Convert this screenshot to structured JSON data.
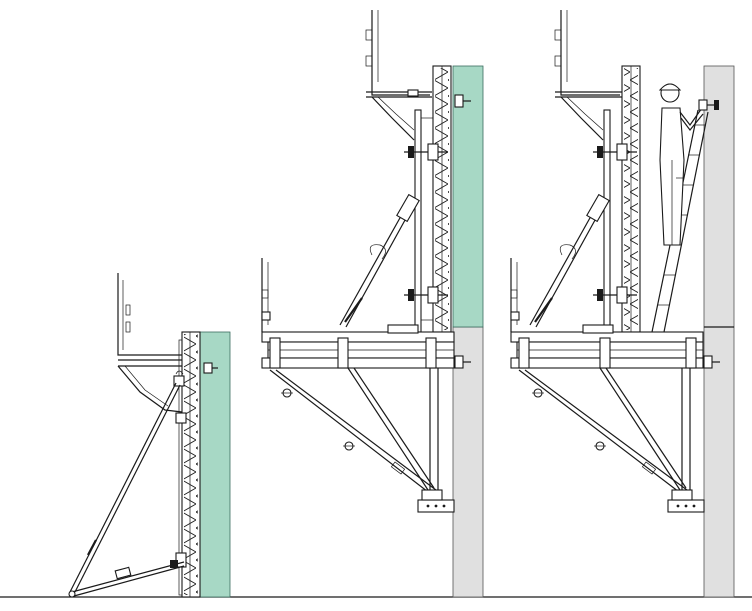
{
  "diagram": {
    "stages": [
      {
        "id": "stage-1"
      },
      {
        "id": "stage-2"
      },
      {
        "id": "stage-3"
      }
    ],
    "colors": {
      "fresh_concrete": "#a7d8c5",
      "hardened_concrete": "#e0e0e0",
      "line": "#1a1a1a"
    }
  }
}
